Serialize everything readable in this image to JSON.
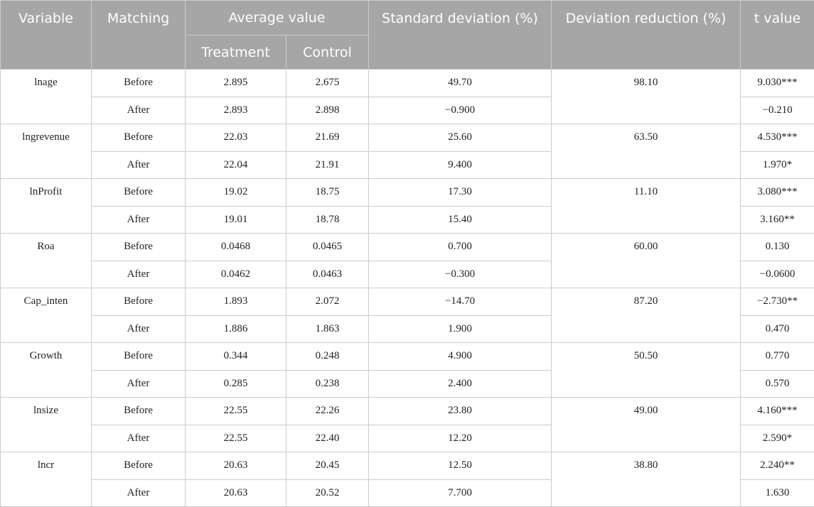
{
  "headers": {
    "variable": "Variable",
    "matching": "Matching",
    "average_value": "Average value",
    "treatment": "Treatment",
    "control": "Control",
    "std_dev": "Standard deviation (%)",
    "dev_reduction": "Deviation reduction (%)",
    "t_value": "t value"
  },
  "rows": [
    {
      "variable": "lnage",
      "reduction": "98.10",
      "before": {
        "label": "Before",
        "treatment": "2.895",
        "control": "2.675",
        "std": "49.70",
        "t": "9.030***"
      },
      "after": {
        "label": "After",
        "treatment": "2.893",
        "control": "2.898",
        "std": "−0.900",
        "t": "−0.210"
      }
    },
    {
      "variable": "lngrevenue",
      "reduction": "63.50",
      "before": {
        "label": "Before",
        "treatment": "22.03",
        "control": "21.69",
        "std": "25.60",
        "t": "4.530***"
      },
      "after": {
        "label": "After",
        "treatment": "22.04",
        "control": "21.91",
        "std": "9.400",
        "t": "1.970*"
      }
    },
    {
      "variable": "lnProfit",
      "reduction": "11.10",
      "before": {
        "label": "Before",
        "treatment": "19.02",
        "control": "18.75",
        "std": "17.30",
        "t": "3.080***"
      },
      "after": {
        "label": "After",
        "treatment": "19.01",
        "control": "18.78",
        "std": "15.40",
        "t": "3.160**"
      }
    },
    {
      "variable": "Roa",
      "reduction": "60.00",
      "before": {
        "label": "Before",
        "treatment": "0.0468",
        "control": "0.0465",
        "std": "0.700",
        "t": "0.130"
      },
      "after": {
        "label": "After",
        "treatment": "0.0462",
        "control": "0.0463",
        "std": "−0.300",
        "t": "−0.0600"
      }
    },
    {
      "variable": "Cap_inten",
      "reduction": "87.20",
      "before": {
        "label": "Before",
        "treatment": "1.893",
        "control": "2.072",
        "std": "−14.70",
        "t": "−2.730**"
      },
      "after": {
        "label": "After",
        "treatment": "1.886",
        "control": "1.863",
        "std": "1.900",
        "t": "0.470"
      }
    },
    {
      "variable": "Growth",
      "reduction": "50.50",
      "before": {
        "label": "Before",
        "treatment": "0.344",
        "control": "0.248",
        "std": "4.900",
        "t": "0.770"
      },
      "after": {
        "label": "After",
        "treatment": "0.285",
        "control": "0.238",
        "std": "2.400",
        "t": "0.570"
      }
    },
    {
      "variable": "lnsize",
      "reduction": "49.00",
      "before": {
        "label": "Before",
        "treatment": "22.55",
        "control": "22.26",
        "std": "23.80",
        "t": "4.160***"
      },
      "after": {
        "label": "After",
        "treatment": "22.55",
        "control": "22.40",
        "std": "12.20",
        "t": "2.590*"
      }
    },
    {
      "variable": "lncr",
      "reduction": "38.80",
      "before": {
        "label": "Before",
        "treatment": "20.63",
        "control": "20.45",
        "std": "12.50",
        "t": "2.240**"
      },
      "after": {
        "label": "After",
        "treatment": "20.63",
        "control": "20.52",
        "std": "7.700",
        "t": "1.630"
      }
    }
  ]
}
